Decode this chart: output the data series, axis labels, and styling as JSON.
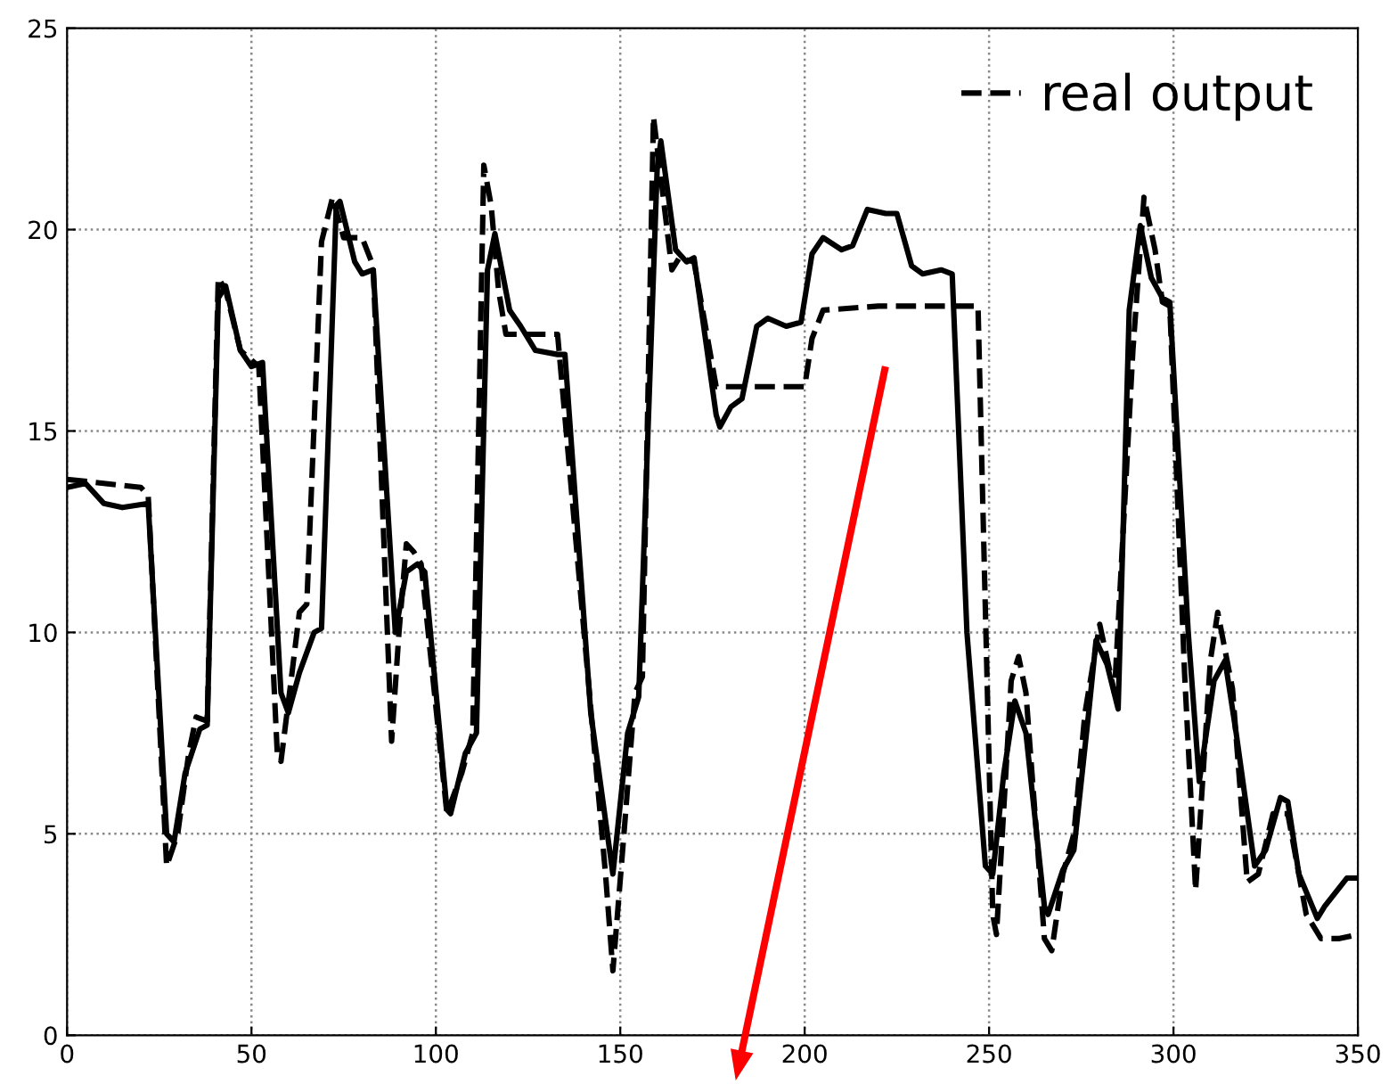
{
  "chart_data": {
    "type": "line",
    "xlim": [
      0,
      350
    ],
    "ylim": [
      0,
      25
    ],
    "xticks": [
      0,
      50,
      100,
      150,
      200,
      250,
      300,
      350
    ],
    "yticks": [
      0,
      5,
      10,
      15,
      20,
      25
    ],
    "grid": true,
    "legend": "top right",
    "marker": "none",
    "series": [
      {
        "color": "#000000",
        "line_style": "solid",
        "x": [
          0,
          5,
          10,
          15,
          22,
          27,
          29,
          32,
          36,
          38,
          41,
          43,
          47,
          50,
          53,
          58,
          60,
          63,
          67,
          69,
          73,
          74,
          78,
          80,
          83,
          89,
          92,
          95,
          97,
          103,
          104,
          108,
          111,
          114,
          116,
          120,
          123,
          127,
          133,
          135,
          142,
          148,
          152,
          155,
          160,
          161,
          165,
          168,
          170,
          176,
          177,
          180,
          183,
          187,
          190,
          195,
          199,
          202,
          205,
          210,
          213,
          217,
          222,
          225,
          229,
          232,
          237,
          240,
          244,
          249,
          251,
          254,
          257,
          260,
          265,
          266,
          270,
          273,
          277,
          279,
          282,
          285,
          288,
          291,
          294,
          297,
          299,
          304,
          307,
          311,
          314,
          317,
          322,
          325,
          329,
          331,
          334,
          339,
          341,
          347,
          350
        ],
        "values": [
          13.6,
          13.7,
          13.2,
          13.1,
          13.2,
          5.0,
          4.8,
          6.5,
          7.6,
          7.7,
          18.3,
          18.6,
          17.0,
          16.6,
          16.7,
          8.5,
          8.0,
          9.0,
          10.0,
          10.1,
          20.6,
          20.7,
          19.2,
          18.9,
          19.0,
          10.0,
          11.5,
          11.7,
          11.5,
          5.6,
          5.5,
          7.0,
          7.5,
          19.0,
          19.9,
          18.0,
          17.6,
          17.0,
          16.9,
          16.9,
          8.0,
          4.0,
          7.5,
          8.4,
          21.5,
          22.2,
          19.5,
          19.2,
          19.3,
          15.4,
          15.1,
          15.6,
          15.8,
          17.6,
          17.8,
          17.6,
          17.7,
          19.4,
          19.8,
          19.5,
          19.6,
          20.5,
          20.4,
          20.4,
          19.1,
          18.9,
          19.0,
          18.9,
          10.0,
          4.2,
          4.0,
          6.5,
          8.3,
          7.5,
          3.2,
          3.0,
          4.1,
          4.6,
          8.0,
          9.8,
          9.2,
          8.1,
          18.0,
          20.1,
          18.8,
          18.3,
          18.2,
          10.0,
          6.3,
          8.8,
          9.3,
          7.5,
          4.2,
          4.6,
          5.9,
          5.8,
          4.0,
          2.9,
          3.2,
          3.9,
          3.9
        ]
      },
      {
        "name": "real output",
        "color": "#000000",
        "line_style": "dashed",
        "x": [
          0,
          20,
          22,
          27,
          30,
          33,
          35,
          38,
          41,
          43,
          47,
          52,
          57,
          58,
          61,
          63,
          65,
          69,
          72,
          75,
          80,
          83,
          88,
          90,
          92,
          94,
          96,
          103,
          107,
          110,
          113,
          115,
          117,
          119,
          133,
          146,
          148,
          151,
          154,
          156,
          159,
          161,
          164,
          166,
          170,
          176,
          200,
          202,
          205,
          220,
          247,
          251,
          252,
          256,
          258,
          260,
          265,
          267,
          270,
          273,
          276,
          280,
          284,
          289,
          292,
          295,
          297,
          299,
          303,
          306,
          310,
          312,
          316,
          320,
          323,
          327,
          331,
          336,
          340,
          345,
          350
        ],
        "values": [
          13.8,
          13.6,
          13.4,
          4.2,
          5.0,
          7.0,
          7.9,
          7.8,
          18.8,
          18.5,
          17.0,
          16.6,
          7.0,
          6.8,
          9.0,
          10.5,
          10.7,
          19.7,
          20.8,
          19.8,
          19.8,
          19.1,
          7.3,
          10.0,
          12.2,
          12.0,
          11.7,
          5.5,
          6.5,
          7.5,
          21.6,
          20.6,
          18.5,
          17.4,
          17.4,
          4.0,
          1.6,
          5.0,
          8.5,
          8.9,
          22.8,
          21.3,
          19.0,
          19.3,
          19.2,
          16.1,
          16.1,
          17.3,
          18.0,
          18.1,
          18.1,
          3.0,
          2.5,
          8.8,
          9.4,
          8.5,
          2.4,
          2.1,
          4.0,
          5.0,
          8.0,
          10.2,
          8.5,
          17.0,
          20.8,
          19.5,
          18.2,
          18.1,
          9.0,
          3.6,
          9.3,
          10.5,
          8.6,
          3.8,
          4.0,
          5.5,
          5.5,
          3.0,
          2.4,
          2.4,
          2.5
        ]
      }
    ]
  }
}
